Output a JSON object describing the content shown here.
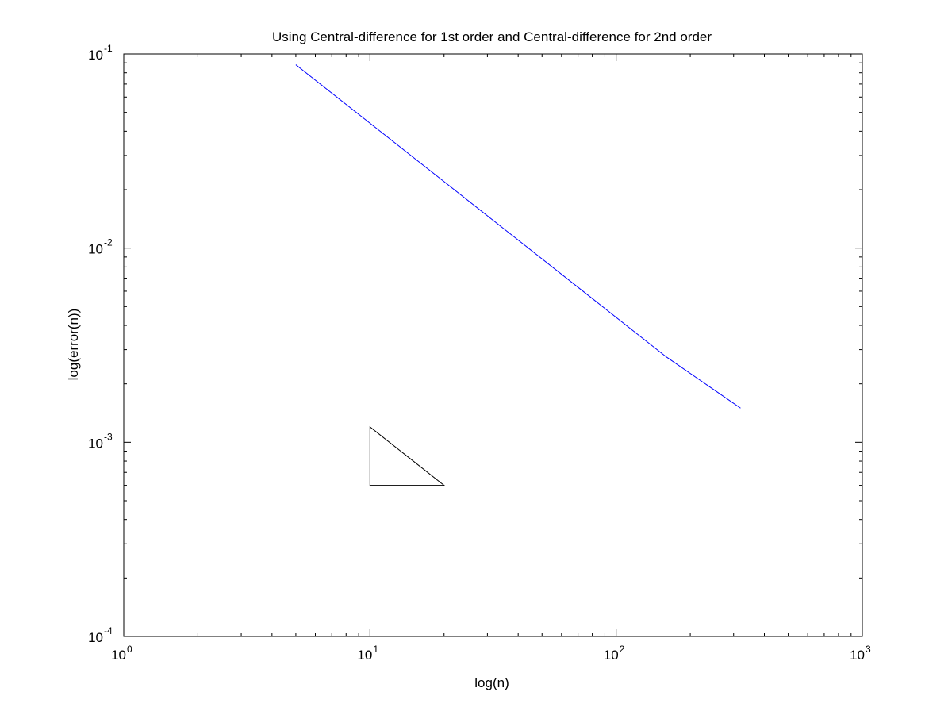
{
  "chart_data": {
    "type": "line",
    "title": "Using Central-difference for 1st order and Central-difference for 2nd order",
    "xlabel": "log(n)",
    "ylabel": "log(error(n))",
    "xscale": "log",
    "yscale": "log",
    "xlim": [
      1,
      1000
    ],
    "ylim": [
      0.0001,
      0.1
    ],
    "grid": false,
    "x_ticks": [
      {
        "value": 1,
        "base": "10",
        "exp": "0"
      },
      {
        "value": 10,
        "base": "10",
        "exp": "1"
      },
      {
        "value": 100,
        "base": "10",
        "exp": "2"
      },
      {
        "value": 1000,
        "base": "10",
        "exp": "3"
      }
    ],
    "y_ticks": [
      {
        "value": 0.0001,
        "base": "10",
        "exp": "-4"
      },
      {
        "value": 0.001,
        "base": "10",
        "exp": "-3"
      },
      {
        "value": 0.01,
        "base": "10",
        "exp": "-2"
      },
      {
        "value": 0.1,
        "base": "10",
        "exp": "-1"
      }
    ],
    "series": [
      {
        "color": "#0000ff",
        "x": [
          5,
          10,
          20,
          40,
          80,
          160,
          320
        ],
        "y": [
          0.088,
          0.044,
          0.022,
          0.011,
          0.0055,
          0.00275,
          0.0015
        ]
      }
    ],
    "annotations": [
      {
        "kind": "slope-triangle",
        "color": "#000000",
        "points": [
          [
            10,
            0.0012
          ],
          [
            10,
            0.0006
          ],
          [
            20,
            0.0006
          ]
        ]
      }
    ]
  }
}
